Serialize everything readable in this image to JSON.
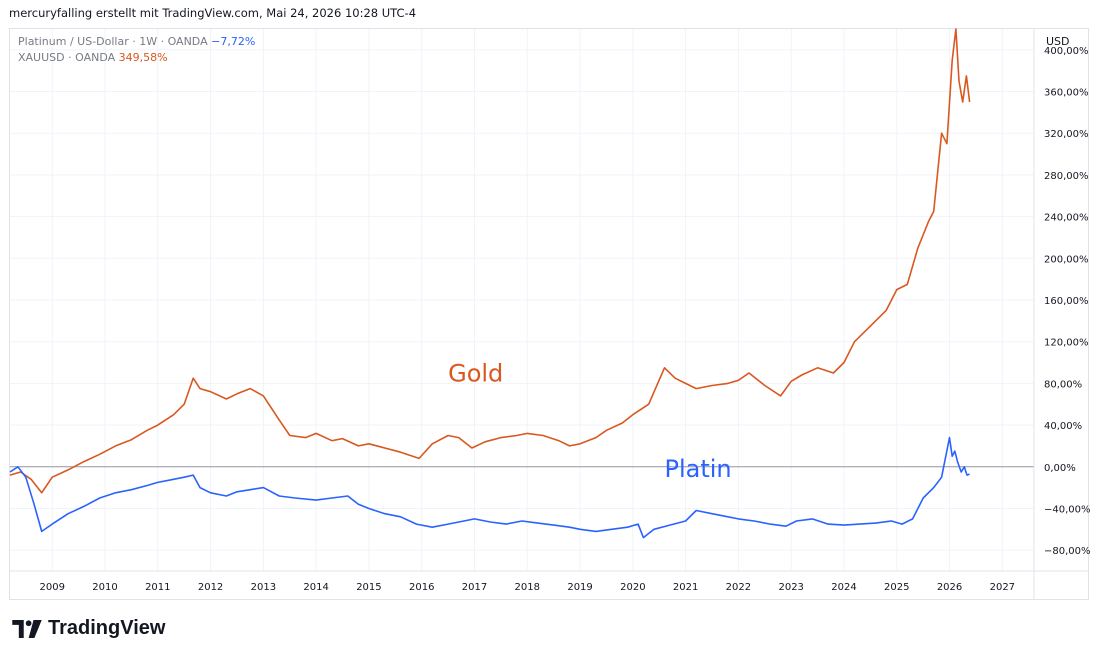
{
  "header": {
    "attribution": "mercuryfalling erstellt mit TradingView.com, Mai 24, 2026 10:28 UTC-4"
  },
  "legend": {
    "platinum_label": "Platinum / US-Dollar · 1W · OANDA",
    "platinum_value": "−7,72%",
    "gold_label": "XAUUSD · OANDA",
    "gold_value": "349,58%"
  },
  "annotations": {
    "gold": "Gold",
    "platinum": "Platin"
  },
  "footer": {
    "brand": "TradingView"
  },
  "colors": {
    "gold": "#d9581f",
    "platinum": "#2962ff",
    "grid": "#f0f3fa",
    "axis_text": "#131722"
  },
  "chart_data": {
    "type": "line",
    "currency_label": "USD",
    "y_unit": "%",
    "ylim": [
      -100,
      420
    ],
    "y_ticks": [
      "400,00%",
      "360,00%",
      "320,00%",
      "280,00%",
      "240,00%",
      "200,00%",
      "160,00%",
      "120,00%",
      "80,00%",
      "40,00%",
      "0,00%",
      "−40,00%",
      "−80,00%"
    ],
    "y_tick_values": [
      400,
      360,
      320,
      280,
      240,
      200,
      160,
      120,
      80,
      40,
      0,
      -40,
      -80
    ],
    "x_ticks": [
      "2009",
      "2010",
      "2011",
      "2012",
      "2013",
      "2014",
      "2015",
      "2016",
      "2017",
      "2018",
      "2019",
      "2020",
      "2021",
      "2022",
      "2023",
      "2024",
      "2025",
      "2026",
      "2027"
    ],
    "xlim": [
      2008.2,
      2027.6
    ],
    "grid": true,
    "series": [
      {
        "name": "XAUUSD · OANDA",
        "color": "#d9581f",
        "x": [
          2008.2,
          2008.4,
          2008.6,
          2008.8,
          2009.0,
          2009.3,
          2009.6,
          2009.9,
          2010.2,
          2010.5,
          2010.8,
          2011.0,
          2011.3,
          2011.5,
          2011.67,
          2011.8,
          2012.0,
          2012.3,
          2012.5,
          2012.75,
          2013.0,
          2013.3,
          2013.5,
          2013.8,
          2014.0,
          2014.3,
          2014.5,
          2014.8,
          2015.0,
          2015.3,
          2015.6,
          2015.95,
          2016.2,
          2016.5,
          2016.7,
          2016.95,
          2017.2,
          2017.5,
          2017.8,
          2018.0,
          2018.3,
          2018.6,
          2018.8,
          2019.0,
          2019.3,
          2019.5,
          2019.8,
          2020.0,
          2020.3,
          2020.6,
          2020.8,
          2021.0,
          2021.2,
          2021.5,
          2021.8,
          2022.0,
          2022.2,
          2022.5,
          2022.8,
          2023.0,
          2023.2,
          2023.5,
          2023.8,
          2024.0,
          2024.2,
          2024.5,
          2024.8,
          2025.0,
          2025.2,
          2025.4,
          2025.6,
          2025.7,
          2025.85,
          2025.95,
          2026.05,
          2026.12,
          2026.18,
          2026.25,
          2026.32,
          2026.38
        ],
        "y": [
          -8,
          -5,
          -12,
          -25,
          -10,
          -3,
          5,
          12,
          20,
          26,
          35,
          40,
          50,
          60,
          85,
          75,
          72,
          65,
          70,
          75,
          68,
          45,
          30,
          28,
          32,
          25,
          27,
          20,
          22,
          18,
          14,
          8,
          22,
          30,
          28,
          18,
          24,
          28,
          30,
          32,
          30,
          25,
          20,
          22,
          28,
          35,
          42,
          50,
          60,
          95,
          85,
          80,
          75,
          78,
          80,
          83,
          90,
          78,
          68,
          82,
          88,
          95,
          90,
          100,
          120,
          135,
          150,
          170,
          175,
          210,
          235,
          245,
          320,
          310,
          390,
          420,
          370,
          350,
          375,
          350
        ]
      },
      {
        "name": "Platinum / US-Dollar · 1W · OANDA",
        "color": "#2962ff",
        "x": [
          2008.2,
          2008.35,
          2008.5,
          2008.65,
          2008.8,
          2009.0,
          2009.3,
          2009.6,
          2009.9,
          2010.2,
          2010.5,
          2010.8,
          2011.0,
          2011.3,
          2011.5,
          2011.67,
          2011.8,
          2012.0,
          2012.3,
          2012.5,
          2012.75,
          2013.0,
          2013.3,
          2013.6,
          2014.0,
          2014.3,
          2014.6,
          2014.8,
          2015.0,
          2015.3,
          2015.6,
          2015.9,
          2016.2,
          2016.5,
          2016.8,
          2017.0,
          2017.3,
          2017.6,
          2017.9,
          2018.2,
          2018.5,
          2018.8,
          2019.0,
          2019.3,
          2019.6,
          2019.9,
          2020.1,
          2020.2,
          2020.4,
          2020.7,
          2021.0,
          2021.2,
          2021.5,
          2021.8,
          2022.0,
          2022.3,
          2022.6,
          2022.9,
          2023.1,
          2023.4,
          2023.7,
          2024.0,
          2024.3,
          2024.6,
          2024.9,
          2025.1,
          2025.3,
          2025.5,
          2025.7,
          2025.85,
          2026.0,
          2026.05,
          2026.1,
          2026.15,
          2026.22,
          2026.28,
          2026.33,
          2026.38
        ],
        "y": [
          -5,
          0,
          -10,
          -35,
          -62,
          -55,
          -45,
          -38,
          -30,
          -25,
          -22,
          -18,
          -15,
          -12,
          -10,
          -8,
          -20,
          -25,
          -28,
          -24,
          -22,
          -20,
          -28,
          -30,
          -32,
          -30,
          -28,
          -36,
          -40,
          -45,
          -48,
          -55,
          -58,
          -55,
          -52,
          -50,
          -53,
          -55,
          -52,
          -54,
          -56,
          -58,
          -60,
          -62,
          -60,
          -58,
          -55,
          -68,
          -60,
          -56,
          -52,
          -42,
          -45,
          -48,
          -50,
          -52,
          -55,
          -57,
          -52,
          -50,
          -55,
          -56,
          -55,
          -54,
          -52,
          -55,
          -50,
          -30,
          -20,
          -10,
          28,
          10,
          15,
          5,
          -5,
          0,
          -8,
          -7
        ]
      }
    ]
  }
}
